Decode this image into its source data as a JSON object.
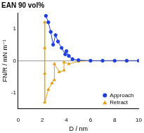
{
  "chart_data": {
    "type": "scatter",
    "title": "EAN 90 vol%",
    "x_label": "D / nm",
    "y_label": "FN/R / mN m⁻¹",
    "legend": "lower right",
    "xlim": [
      0,
      10
    ],
    "xticks": [
      0,
      2,
      4,
      6,
      8,
      10
    ],
    "ylim": [
      -1.5,
      1.5
    ],
    "yticks": [
      -1,
      0,
      1
    ],
    "series": [
      {
        "name": "Approach",
        "color": "#1f3fd6",
        "marker": "circle",
        "line_style": "solid",
        "x": [
          10,
          9,
          8,
          7,
          6,
          5,
          4.5,
          4.2,
          4.0,
          3.9,
          3.6,
          3.3,
          3.1,
          2.9,
          2.7,
          2.5,
          2.3
        ],
        "values": [
          0,
          0,
          0,
          0,
          0,
          0.02,
          0.05,
          0.15,
          0.3,
          0.2,
          0.4,
          0.6,
          0.8,
          0.5,
          0.9,
          1.2,
          1.4
        ]
      },
      {
        "name": "Retract",
        "color": "#e0a020",
        "marker": "triangle",
        "line_style": "solid",
        "x": [
          2.2,
          2.2,
          2.2,
          2.2,
          2.5,
          2.8,
          3.0,
          3.0,
          3.4,
          3.8,
          3.8,
          4.2,
          5,
          6,
          7,
          8,
          9,
          10
        ],
        "values": [
          1.2,
          0.4,
          -0.4,
          -1.3,
          -0.9,
          -0.7,
          -0.6,
          -0.1,
          -0.35,
          -0.3,
          -0.05,
          -0.1,
          -0.02,
          0,
          0,
          0,
          0,
          0
        ]
      }
    ]
  }
}
